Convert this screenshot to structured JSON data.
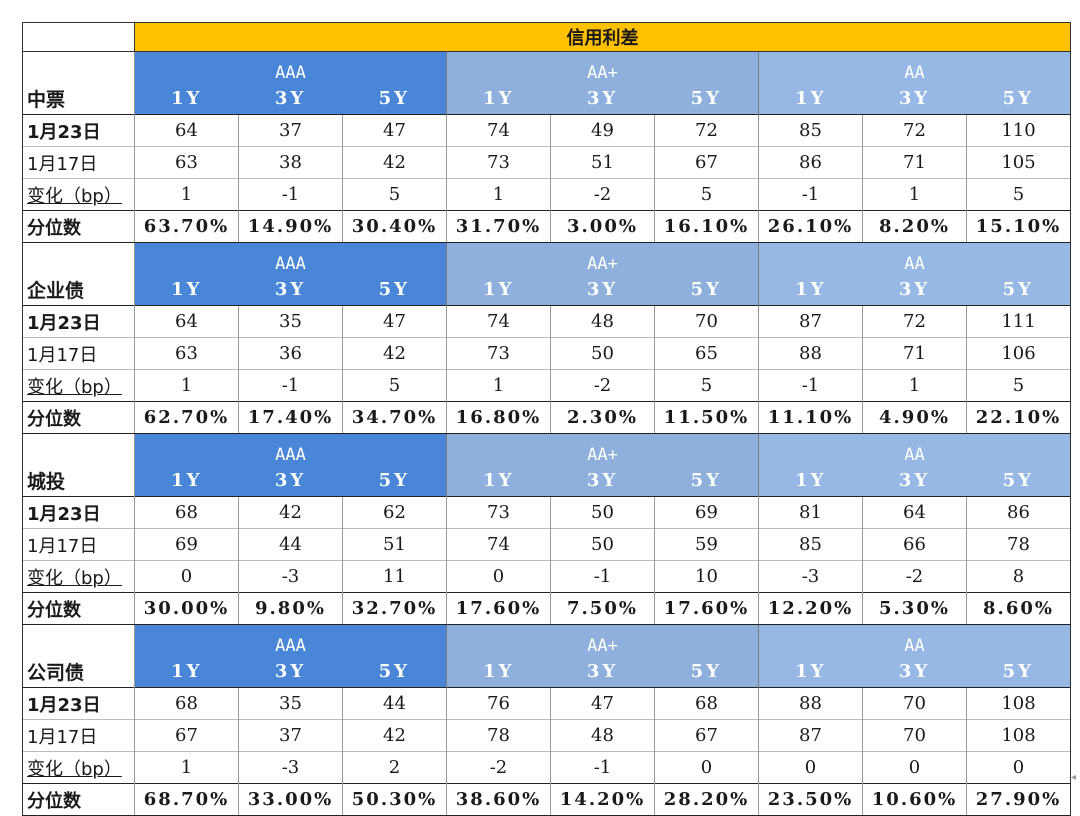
{
  "title": "信用利差",
  "group_labels": [
    "AAA",
    "AA+",
    "AA"
  ],
  "tenor_labels": [
    "1Y",
    "3Y",
    "5Y",
    "1Y",
    "3Y",
    "5Y",
    "1Y",
    "3Y",
    "5Y"
  ],
  "sections": [
    {
      "name": "中票",
      "rows": [
        {
          "label": "1月23日",
          "values": [
            "64",
            "37",
            "47",
            "74",
            "49",
            "72",
            "85",
            "72",
            "110"
          ]
        },
        {
          "label": "1月17日",
          "values": [
            "63",
            "38",
            "42",
            "73",
            "51",
            "67",
            "86",
            "71",
            "105"
          ]
        },
        {
          "label": "变化（bp）",
          "values": [
            "1",
            "-1",
            "5",
            "1",
            "-2",
            "5",
            "-1",
            "1",
            "5"
          ]
        },
        {
          "label": "分位数",
          "values": [
            "63.70%",
            "14.90%",
            "30.40%",
            "31.70%",
            "3.00%",
            "16.10%",
            "26.10%",
            "8.20%",
            "15.10%"
          ]
        }
      ]
    },
    {
      "name": "企业债",
      "rows": [
        {
          "label": "1月23日",
          "values": [
            "64",
            "35",
            "47",
            "74",
            "48",
            "70",
            "87",
            "72",
            "111"
          ]
        },
        {
          "label": "1月17日",
          "values": [
            "63",
            "36",
            "42",
            "73",
            "50",
            "65",
            "88",
            "71",
            "106"
          ]
        },
        {
          "label": "变化（bp）",
          "values": [
            "1",
            "-1",
            "5",
            "1",
            "-2",
            "5",
            "-1",
            "1",
            "5"
          ]
        },
        {
          "label": "分位数",
          "values": [
            "62.70%",
            "17.40%",
            "34.70%",
            "16.80%",
            "2.30%",
            "11.50%",
            "11.10%",
            "4.90%",
            "22.10%"
          ]
        }
      ]
    },
    {
      "name": "城投",
      "rows": [
        {
          "label": "1月23日",
          "values": [
            "68",
            "42",
            "62",
            "73",
            "50",
            "69",
            "81",
            "64",
            "86"
          ]
        },
        {
          "label": "1月17日",
          "values": [
            "69",
            "44",
            "51",
            "74",
            "50",
            "59",
            "85",
            "66",
            "78"
          ]
        },
        {
          "label": "变化（bp）",
          "values": [
            "0",
            "-3",
            "11",
            "0",
            "-1",
            "10",
            "-3",
            "-2",
            "8"
          ]
        },
        {
          "label": "分位数",
          "values": [
            "30.00%",
            "9.80%",
            "32.70%",
            "17.60%",
            "7.50%",
            "17.60%",
            "12.20%",
            "5.30%",
            "8.60%"
          ]
        }
      ]
    },
    {
      "name": "公司债",
      "rows": [
        {
          "label": "1月23日",
          "values": [
            "68",
            "35",
            "44",
            "76",
            "47",
            "68",
            "88",
            "70",
            "108"
          ]
        },
        {
          "label": "1月17日",
          "values": [
            "67",
            "37",
            "42",
            "78",
            "48",
            "67",
            "87",
            "70",
            "108"
          ]
        },
        {
          "label": "变化（bp）",
          "values": [
            "1",
            "-3",
            "2",
            "-2",
            "-1",
            "0",
            "0",
            "0",
            "0"
          ]
        },
        {
          "label": "分位数",
          "values": [
            "68.70%",
            "33.00%",
            "50.30%",
            "38.60%",
            "14.20%",
            "28.20%",
            "23.50%",
            "10.60%",
            "27.90%"
          ]
        }
      ]
    }
  ],
  "colors": {
    "banner": "#FFC000",
    "aaa_header": "#4A86D8",
    "aa_plus_header": "#8FB0DC",
    "aa_header": "#97B7E5"
  }
}
